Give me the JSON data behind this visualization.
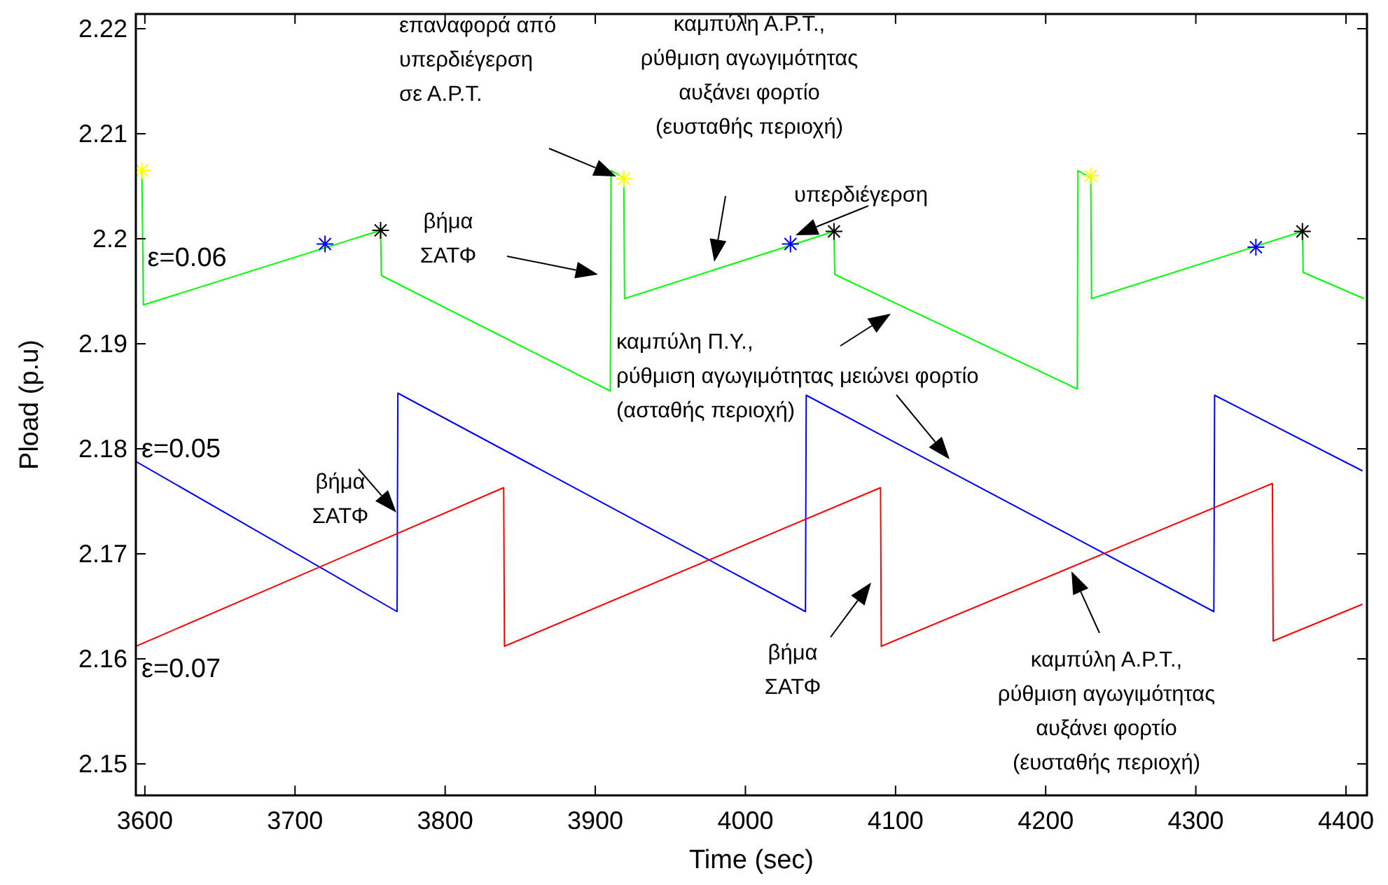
{
  "chart_data": {
    "type": "line",
    "xlabel": "Time (sec)",
    "ylabel": "Pload (p.u)",
    "xlim": [
      3594,
      4414
    ],
    "ylim": [
      2.147,
      2.2214
    ],
    "xticks": [
      3600,
      3700,
      3800,
      3900,
      4000,
      4100,
      4200,
      4300,
      4400
    ],
    "yticks": [
      2.15,
      2.16,
      2.17,
      2.18,
      2.19,
      2.2,
      2.21,
      2.22
    ],
    "grid": false,
    "line_style": "solid",
    "series": [
      {
        "name": "ε=0.06",
        "color": "#00ff00",
        "x": [
          3598,
          3599,
          3757,
          3757.5,
          3910,
          3910.5,
          3919,
          3919.5,
          4059,
          4059.5,
          4221,
          4221.5,
          4230,
          4230.5,
          4371,
          4371.5,
          4412
        ],
        "values": [
          2.2065,
          2.1937,
          2.2008,
          2.1965,
          2.1855,
          2.2065,
          2.2058,
          2.1943,
          2.2007,
          2.1966,
          2.1857,
          2.2065,
          2.2058,
          2.1943,
          2.2007,
          2.1968,
          2.1943
        ]
      },
      {
        "name": "ε=0.05",
        "color": "#0000ff",
        "x": [
          3594,
          3768,
          3768.5,
          4040,
          4040.5,
          4312,
          4312.5,
          4411
        ],
        "values": [
          2.1788,
          2.1645,
          2.1853,
          2.1645,
          2.1851,
          2.1645,
          2.1851,
          2.1779
        ]
      },
      {
        "name": "ε=0.07",
        "color": "#ff0000",
        "x": [
          3594,
          3839,
          3839.5,
          4090,
          4090.5,
          4351,
          4351.5,
          4411
        ],
        "values": [
          2.1612,
          2.1763,
          2.1612,
          2.1763,
          2.1612,
          2.1767,
          2.1617,
          2.1652
        ]
      },
      {
        "type": "scatter",
        "marker": "cross",
        "color": "#ffff00",
        "x": [
          3598,
          3919,
          4230
        ],
        "values": [
          2.2065,
          2.2057,
          2.206
        ]
      },
      {
        "type": "scatter",
        "marker": "cross",
        "color": "#0000ff",
        "x": [
          3720,
          4030,
          4340
        ],
        "values": [
          2.1995,
          2.1995,
          2.1992
        ]
      },
      {
        "type": "scatter",
        "marker": "cross",
        "color": "#000000",
        "x": [
          3757,
          4059,
          4371
        ],
        "values": [
          2.2008,
          2.2007,
          2.2007
        ]
      }
    ],
    "annotations": [
      "επαναφορά από\nυπερδιέγερση\nσε Α.Ρ.Τ.",
      "καμπύλη Α.Ρ.Τ.,\nρύθμιση αγωγιμότητας\nαυξάνει φορτίο\n(ευσταθής περιοχή)",
      "υπερδιέγερση",
      "βήμα\nΣΑΤΦ",
      "καμπύλη Π.Υ.,\nρύθμιση αγωγιμότητας μειώνει φορτίο\n(ασταθής περιοχή)",
      "βήμα\nΣΑΤΦ",
      "βήμα\nΣΑΤΦ",
      "καμπύλη Α.Ρ.Τ.,\nρύθμιση αγωγιμότητας\nαυξάνει φορτίο\n(ευσταθής περιοχή)"
    ]
  }
}
